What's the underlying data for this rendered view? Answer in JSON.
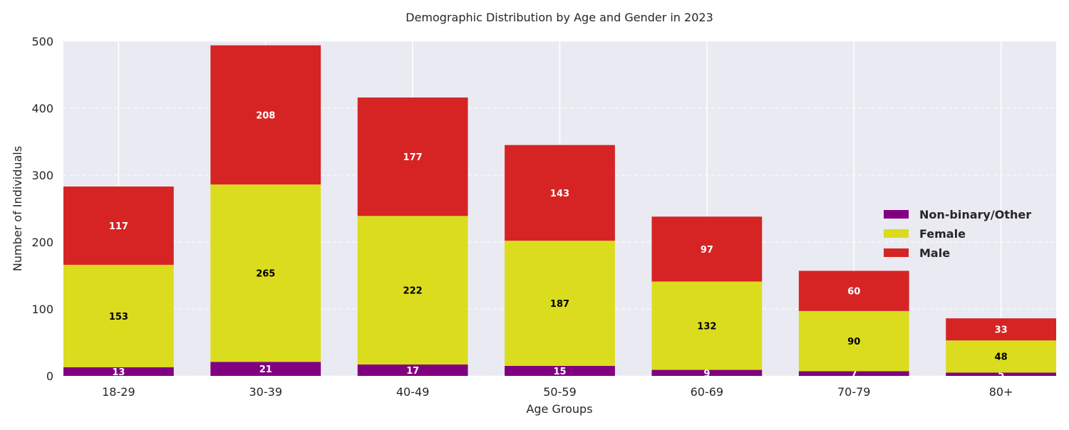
{
  "chart_data": {
    "type": "bar",
    "stacked": true,
    "title": "Demographic Distribution by Age and Gender in 2023",
    "xlabel": "Age Groups",
    "ylabel": "Number of Individuals",
    "ylim": [
      0,
      500
    ],
    "yticks": [
      0,
      100,
      200,
      300,
      400,
      500
    ],
    "grid": true,
    "legend_position": "right",
    "categories": [
      "18-29",
      "30-39",
      "40-49",
      "50-59",
      "60-69",
      "70-79",
      "80+"
    ],
    "series": [
      {
        "name": "Non-binary/Other",
        "color": "#800080",
        "label_color": "#ffffff",
        "values": [
          13,
          21,
          17,
          15,
          9,
          7,
          5
        ]
      },
      {
        "name": "Female",
        "color": "#dbdc1e",
        "label_color": "#000000",
        "values": [
          153,
          265,
          222,
          187,
          132,
          90,
          48
        ]
      },
      {
        "name": "Male",
        "color": "#d62424",
        "label_color": "#ffffff",
        "values": [
          117,
          208,
          177,
          143,
          97,
          60,
          33
        ]
      }
    ],
    "background_color": "#eaeaf2"
  }
}
